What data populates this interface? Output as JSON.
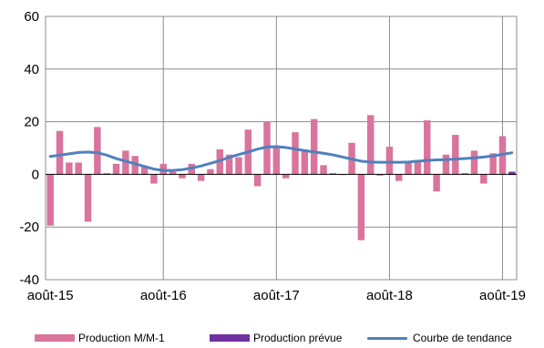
{
  "chart_data": {
    "type": "bar",
    "title": "",
    "xlabel": "",
    "ylabel": "",
    "ylim": [
      -40,
      60
    ],
    "yticks": [
      -40,
      -20,
      0,
      20,
      40,
      60
    ],
    "ytick_labels": [
      "-40",
      "-20",
      "0",
      "20",
      "40",
      "60"
    ],
    "xtick_labels": [
      "août-15",
      "août-16",
      "août-17",
      "août-18",
      "août-19"
    ],
    "xtick_index": [
      0,
      12,
      24,
      36,
      48
    ],
    "grid": true,
    "legend_position": "bottom",
    "categories": [
      "2015-08",
      "2015-09",
      "2015-10",
      "2015-11",
      "2015-12",
      "2016-01",
      "2016-02",
      "2016-03",
      "2016-04",
      "2016-05",
      "2016-06",
      "2016-07",
      "2016-08",
      "2016-09",
      "2016-10",
      "2016-11",
      "2016-12",
      "2017-01",
      "2017-02",
      "2017-03",
      "2017-04",
      "2017-05",
      "2017-06",
      "2017-07",
      "2017-08",
      "2017-09",
      "2017-10",
      "2017-11",
      "2017-12",
      "2018-01",
      "2018-02",
      "2018-03",
      "2018-04",
      "2018-05",
      "2018-06",
      "2018-07",
      "2018-08",
      "2018-09",
      "2018-10",
      "2018-11",
      "2018-12",
      "2019-01",
      "2019-02",
      "2019-03",
      "2019-04",
      "2019-05",
      "2019-06",
      "2019-07",
      "2019-08",
      "2019-09"
    ],
    "series": [
      {
        "name": "Production M/M-1",
        "type": "bar",
        "color": "#d9749c",
        "values": [
          -19.5,
          16.5,
          4.5,
          4.5,
          -18,
          18,
          0.5,
          4,
          9,
          7,
          3,
          -3.5,
          4,
          1,
          -1.5,
          4,
          -2.5,
          2,
          9.5,
          7.5,
          6.5,
          17,
          -4.5,
          20,
          11,
          -1.5,
          16,
          9.5,
          21,
          3.5,
          0.5,
          0,
          12,
          -25,
          22.5,
          -0.5,
          10.5,
          -2.5,
          5,
          5.5,
          20.5,
          -6.5,
          7.5,
          15,
          0.5,
          9,
          -3.5,
          8,
          14.5,
          0
        ]
      },
      {
        "name": "Production prévue",
        "type": "bar",
        "color": "#7030a0",
        "values": [
          null,
          null,
          null,
          null,
          null,
          null,
          null,
          null,
          null,
          null,
          null,
          null,
          null,
          null,
          null,
          null,
          null,
          null,
          null,
          null,
          null,
          null,
          null,
          null,
          null,
          null,
          null,
          null,
          null,
          null,
          null,
          null,
          null,
          null,
          null,
          null,
          null,
          null,
          null,
          null,
          null,
          null,
          null,
          null,
          null,
          null,
          null,
          null,
          null,
          1
        ]
      },
      {
        "name": "Courbe de tendance",
        "type": "line",
        "color": "#4f81bd",
        "values": [
          6.8,
          7.3,
          7.8,
          8.3,
          8.5,
          8.2,
          7.3,
          6,
          5,
          4,
          3,
          2,
          1.5,
          1.5,
          1.8,
          2.4,
          3.2,
          4.2,
          5.2,
          6.5,
          7.5,
          8.5,
          9.6,
          10.4,
          10.5,
          10.2,
          9.6,
          9,
          8.5,
          8,
          7.4,
          6.6,
          5.8,
          5,
          4.7,
          4.6,
          4.6,
          4.6,
          4.7,
          5,
          5.3,
          5.5,
          5.6,
          5.8,
          6,
          6.3,
          6.6,
          7,
          7.6,
          8.2
        ]
      }
    ]
  }
}
